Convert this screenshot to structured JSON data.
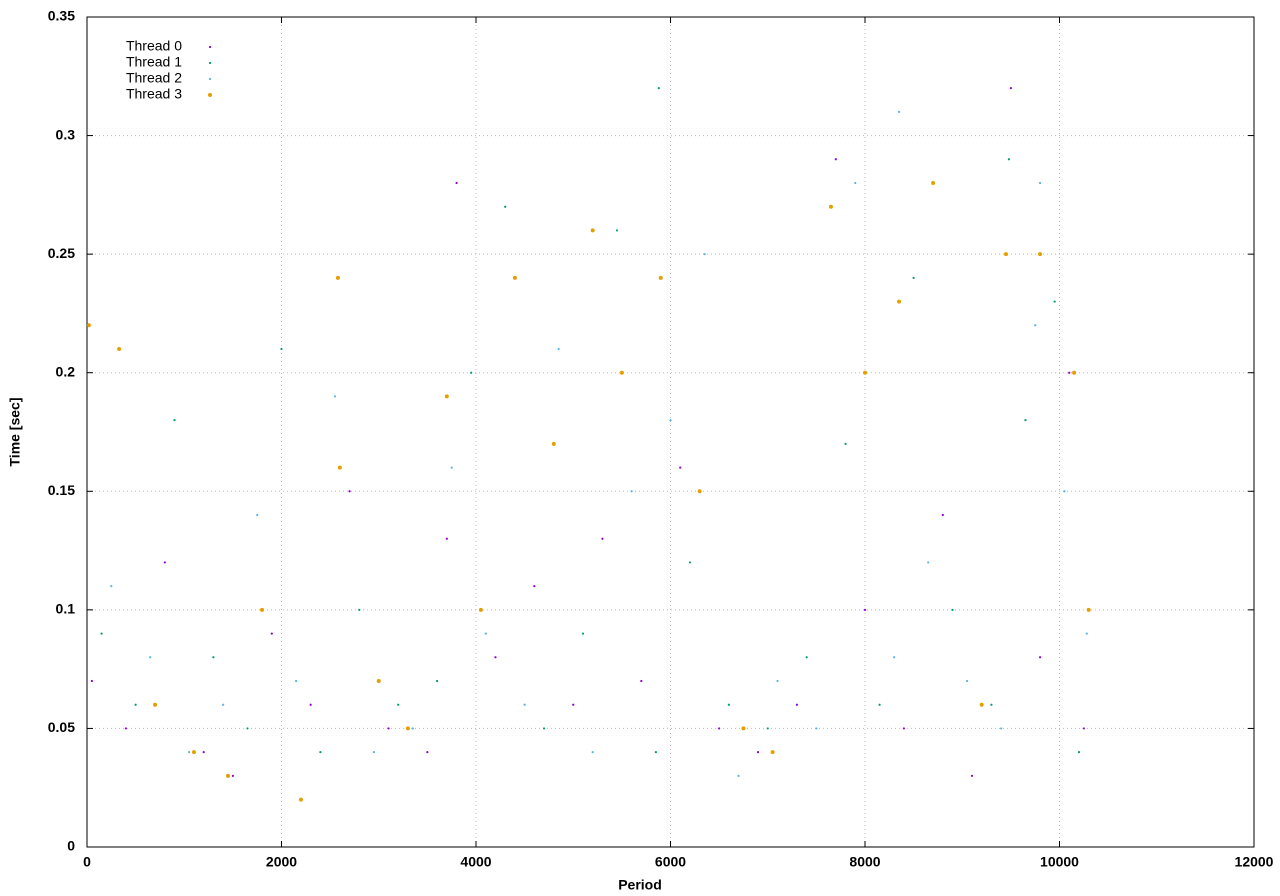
{
  "chart_data": {
    "type": "scatter",
    "xlabel": "Period",
    "ylabel": "Time [sec]",
    "xlim": [
      0,
      12000
    ],
    "xticks": [
      0,
      2000,
      4000,
      6000,
      8000,
      10000,
      12000
    ],
    "ylim": [
      0,
      0.35
    ],
    "yticks": [
      0,
      0.05,
      0.1,
      0.15,
      0.2,
      0.25,
      0.3,
      0.35
    ],
    "grid": true,
    "legend": "top-left",
    "series": [
      {
        "name": "Thread 0",
        "color": "#9400d3",
        "x": [
          50,
          400,
          800,
          1200,
          1500,
          1900,
          2300,
          2700,
          3100,
          3500,
          3800,
          4200,
          4600,
          5000,
          5300,
          5700,
          6100,
          6500,
          6900,
          7300,
          7700,
          8000,
          8400,
          8800,
          9100,
          9500,
          9800,
          10100,
          10250,
          3700
        ],
        "values": [
          0.07,
          0.05,
          0.12,
          0.04,
          0.03,
          0.09,
          0.06,
          0.15,
          0.05,
          0.04,
          0.28,
          0.08,
          0.11,
          0.06,
          0.13,
          0.07,
          0.16,
          0.05,
          0.04,
          0.06,
          0.29,
          0.1,
          0.05,
          0.14,
          0.03,
          0.32,
          0.08,
          0.2,
          0.05,
          0.13
        ]
      },
      {
        "name": "Thread 1",
        "color": "#009e73",
        "x": [
          150,
          500,
          900,
          1300,
          1650,
          2000,
          2400,
          2800,
          3200,
          3600,
          3950,
          4300,
          4700,
          5100,
          5450,
          5850,
          6200,
          6600,
          7000,
          7400,
          7800,
          8150,
          8500,
          8900,
          9300,
          9650,
          9950,
          10200,
          5880,
          9480
        ],
        "values": [
          0.09,
          0.06,
          0.18,
          0.08,
          0.05,
          0.21,
          0.04,
          0.1,
          0.06,
          0.07,
          0.2,
          0.27,
          0.05,
          0.09,
          0.26,
          0.04,
          0.12,
          0.06,
          0.05,
          0.08,
          0.17,
          0.06,
          0.24,
          0.1,
          0.06,
          0.18,
          0.23,
          0.04,
          0.32,
          0.29
        ]
      },
      {
        "name": "Thread 2",
        "color": "#56b4e9",
        "x": [
          250,
          650,
          1050,
          1400,
          1750,
          2150,
          2550,
          2950,
          3350,
          3750,
          4100,
          4500,
          4850,
          5200,
          5600,
          6000,
          6350,
          6700,
          7100,
          7500,
          7900,
          8300,
          8650,
          9050,
          9400,
          9750,
          10050,
          10280,
          8350,
          9800
        ],
        "values": [
          0.11,
          0.08,
          0.04,
          0.06,
          0.14,
          0.07,
          0.19,
          0.04,
          0.05,
          0.16,
          0.09,
          0.06,
          0.21,
          0.04,
          0.15,
          0.18,
          0.25,
          0.03,
          0.07,
          0.05,
          0.28,
          0.08,
          0.12,
          0.07,
          0.05,
          0.22,
          0.15,
          0.09,
          0.31,
          0.28
        ]
      },
      {
        "name": "Thread 3",
        "color": "#e69f00",
        "x": [
          20,
          330,
          700,
          1100,
          1450,
          1800,
          2200,
          2600,
          3000,
          3300,
          3700,
          4050,
          4400,
          4800,
          5200,
          5500,
          5900,
          6300,
          6750,
          7050,
          7650,
          8000,
          8350,
          8700,
          9200,
          9450,
          9800,
          10150,
          10300,
          2580
        ],
        "values": [
          0.22,
          0.21,
          0.06,
          0.04,
          0.03,
          0.1,
          0.02,
          0.16,
          0.07,
          0.05,
          0.19,
          0.1,
          0.24,
          0.17,
          0.26,
          0.2,
          0.24,
          0.15,
          0.05,
          0.04,
          0.27,
          0.2,
          0.23,
          0.28,
          0.06,
          0.25,
          0.25,
          0.2,
          0.1,
          0.24
        ]
      }
    ]
  }
}
